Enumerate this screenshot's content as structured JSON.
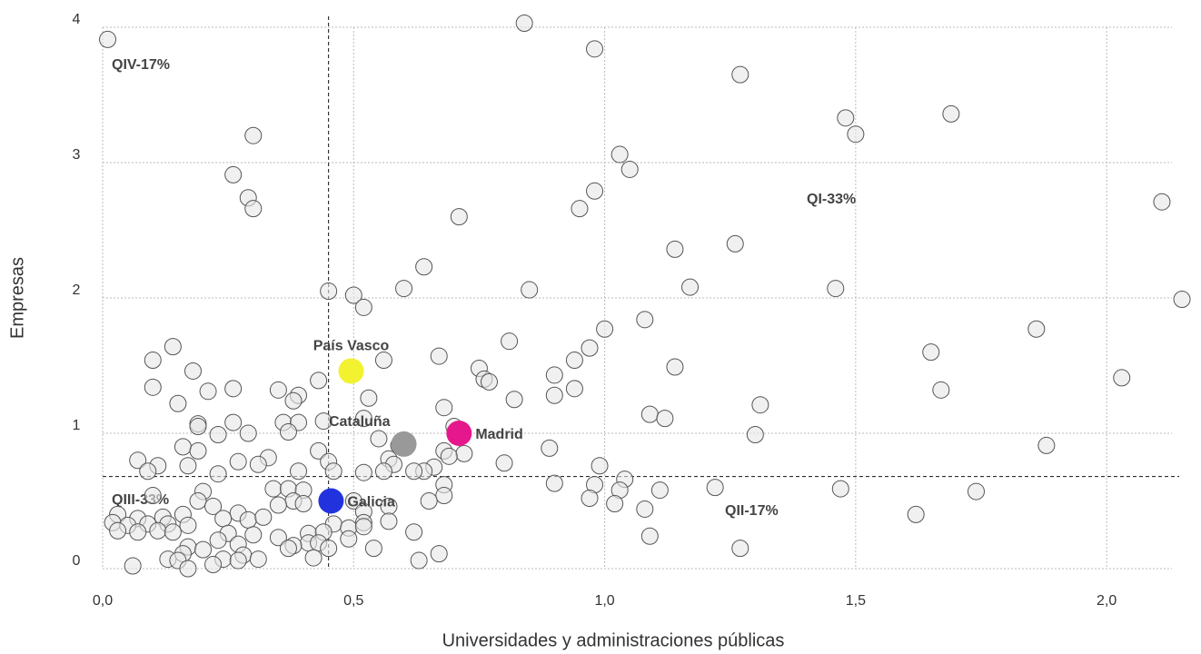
{
  "chart_data": {
    "type": "scatter",
    "x_label": "Universidades y administraciones públicas",
    "y_label": "Empresas",
    "xlim": [
      0,
      2.13
    ],
    "ylim": [
      0,
      4
    ],
    "xticks": [
      {
        "value": 0,
        "label": "0,0"
      },
      {
        "value": 0.5,
        "label": "0,5"
      },
      {
        "value": 1,
        "label": "1,0"
      },
      {
        "value": 1.5,
        "label": "1,5"
      },
      {
        "value": 2,
        "label": "2,0"
      }
    ],
    "yticks": [
      0,
      1,
      2,
      3,
      4
    ],
    "grid": true,
    "reference_lines": {
      "x": 0.45,
      "y": 0.68
    },
    "quadrant_labels": [
      "QI-33%",
      "QII-17%",
      "QIII-33%",
      "QIV-17%"
    ],
    "points": {
      "color": "#e6e6e6",
      "x": [
        0.01,
        0.84,
        0.98,
        1.27,
        1.48,
        1.69,
        1.5,
        0.3,
        0.26,
        0.29,
        0.3,
        1.03,
        1.05,
        0.98,
        0.95,
        0.71,
        2.11,
        1.14,
        1.26,
        0.64,
        0.85,
        0.6,
        1.17,
        1.46,
        0.45,
        0.5,
        0.52,
        2.15,
        1.08,
        1.0,
        1.86,
        0.81,
        0.14,
        0.97,
        0.67,
        1.65,
        0.1,
        0.56,
        0.94,
        1.14,
        0.75,
        0.18,
        0.9,
        0.43,
        0.76,
        0.77,
        2.03,
        0.1,
        0.26,
        0.35,
        0.21,
        0.94,
        1.67,
        0.9,
        0.39,
        0.38,
        0.53,
        0.82,
        0.15,
        1.31,
        0.68,
        0.52,
        1.09,
        1.12,
        0.19,
        0.26,
        0.36,
        0.39,
        0.44,
        0.19,
        0.37,
        0.29,
        0.23,
        1.3,
        0.7,
        0.55,
        0.16,
        1.88,
        0.89,
        0.19,
        0.43,
        0.59,
        0.68,
        0.72,
        0.57,
        0.69,
        0.33,
        0.07,
        0.45,
        0.27,
        0.58,
        0.8,
        0.31,
        0.11,
        0.66,
        0.17,
        0.99,
        0.64,
        0.23,
        0.09,
        0.56,
        0.62,
        0.52,
        0.46,
        0.39,
        1.04,
        0.9,
        0.68,
        0.98,
        1.03,
        1.11,
        1.22,
        1.47,
        1.74,
        0.34,
        0.37,
        0.4,
        0.2,
        0.68,
        0.97,
        0.1,
        1.02,
        0.65,
        0.19,
        0.5,
        0.38,
        1.08,
        0.22,
        0.35,
        0.4,
        0.52,
        0.57,
        1.62,
        0.27,
        0.16,
        0.03,
        0.24,
        0.29,
        0.32,
        0.12,
        0.07,
        0.02,
        0.05,
        0.09,
        0.13,
        0.17,
        0.46,
        0.52,
        0.57,
        0.49,
        0.52,
        0.03,
        0.07,
        0.11,
        0.14,
        0.25,
        0.3,
        0.41,
        0.44,
        0.62,
        0.49,
        1.09,
        0.23,
        0.35,
        0.41,
        0.43,
        0.27,
        0.38,
        0.17,
        0.37,
        0.54,
        0.45,
        1.27,
        0.2,
        0.16,
        0.67,
        0.28,
        0.42,
        0.13,
        0.15,
        0.24,
        0.31,
        0.63,
        0.27,
        0.22,
        0.06,
        0.17
      ],
      "y": [
        3.91,
        4.03,
        3.84,
        3.65,
        3.33,
        3.36,
        3.21,
        3.2,
        2.91,
        2.74,
        2.66,
        3.06,
        2.95,
        2.79,
        2.66,
        2.6,
        2.71,
        2.36,
        2.4,
        2.23,
        2.06,
        2.07,
        2.08,
        2.07,
        2.05,
        2.02,
        1.93,
        1.99,
        1.84,
        1.77,
        1.77,
        1.68,
        1.64,
        1.63,
        1.57,
        1.6,
        1.54,
        1.54,
        1.54,
        1.49,
        1.48,
        1.46,
        1.43,
        1.39,
        1.4,
        1.38,
        1.41,
        1.34,
        1.33,
        1.32,
        1.31,
        1.33,
        1.32,
        1.28,
        1.28,
        1.24,
        1.26,
        1.25,
        1.22,
        1.21,
        1.19,
        1.11,
        1.14,
        1.11,
        1.07,
        1.08,
        1.08,
        1.08,
        1.09,
        1.05,
        1.01,
        1.0,
        0.99,
        0.99,
        1.05,
        0.96,
        0.9,
        0.91,
        0.89,
        0.87,
        0.87,
        0.91,
        0.87,
        0.85,
        0.81,
        0.83,
        0.82,
        0.8,
        0.79,
        0.79,
        0.77,
        0.78,
        0.77,
        0.76,
        0.75,
        0.76,
        0.76,
        0.72,
        0.7,
        0.72,
        0.72,
        0.72,
        0.71,
        0.72,
        0.72,
        0.66,
        0.63,
        0.62,
        0.62,
        0.58,
        0.58,
        0.6,
        0.59,
        0.57,
        0.59,
        0.59,
        0.58,
        0.57,
        0.54,
        0.52,
        0.54,
        0.48,
        0.5,
        0.5,
        0.5,
        0.5,
        0.44,
        0.46,
        0.47,
        0.48,
        0.42,
        0.46,
        0.4,
        0.41,
        0.4,
        0.4,
        0.37,
        0.36,
        0.38,
        0.38,
        0.37,
        0.34,
        0.32,
        0.33,
        0.33,
        0.32,
        0.33,
        0.34,
        0.35,
        0.3,
        0.31,
        0.28,
        0.27,
        0.28,
        0.27,
        0.26,
        0.25,
        0.26,
        0.27,
        0.27,
        0.22,
        0.24,
        0.21,
        0.23,
        0.19,
        0.19,
        0.18,
        0.17,
        0.16,
        0.15,
        0.15,
        0.15,
        0.15,
        0.14,
        0.11,
        0.11,
        0.1,
        0.08,
        0.07,
        0.06,
        0.07,
        0.07,
        0.06,
        0.06,
        0.03,
        0.02,
        0.0
      ]
    },
    "highlights": [
      {
        "label": "País Vasco",
        "x": 0.495,
        "y": 1.46,
        "color": "#f2f230"
      },
      {
        "label": "Cataluña",
        "x": 0.6,
        "y": 0.92,
        "color": "#999999"
      },
      {
        "label": "Madrid",
        "x": 0.71,
        "y": 1.0,
        "color": "#e6168c"
      },
      {
        "label": "Galicia",
        "x": 0.455,
        "y": 0.5,
        "color": "#2233dd"
      }
    ]
  }
}
